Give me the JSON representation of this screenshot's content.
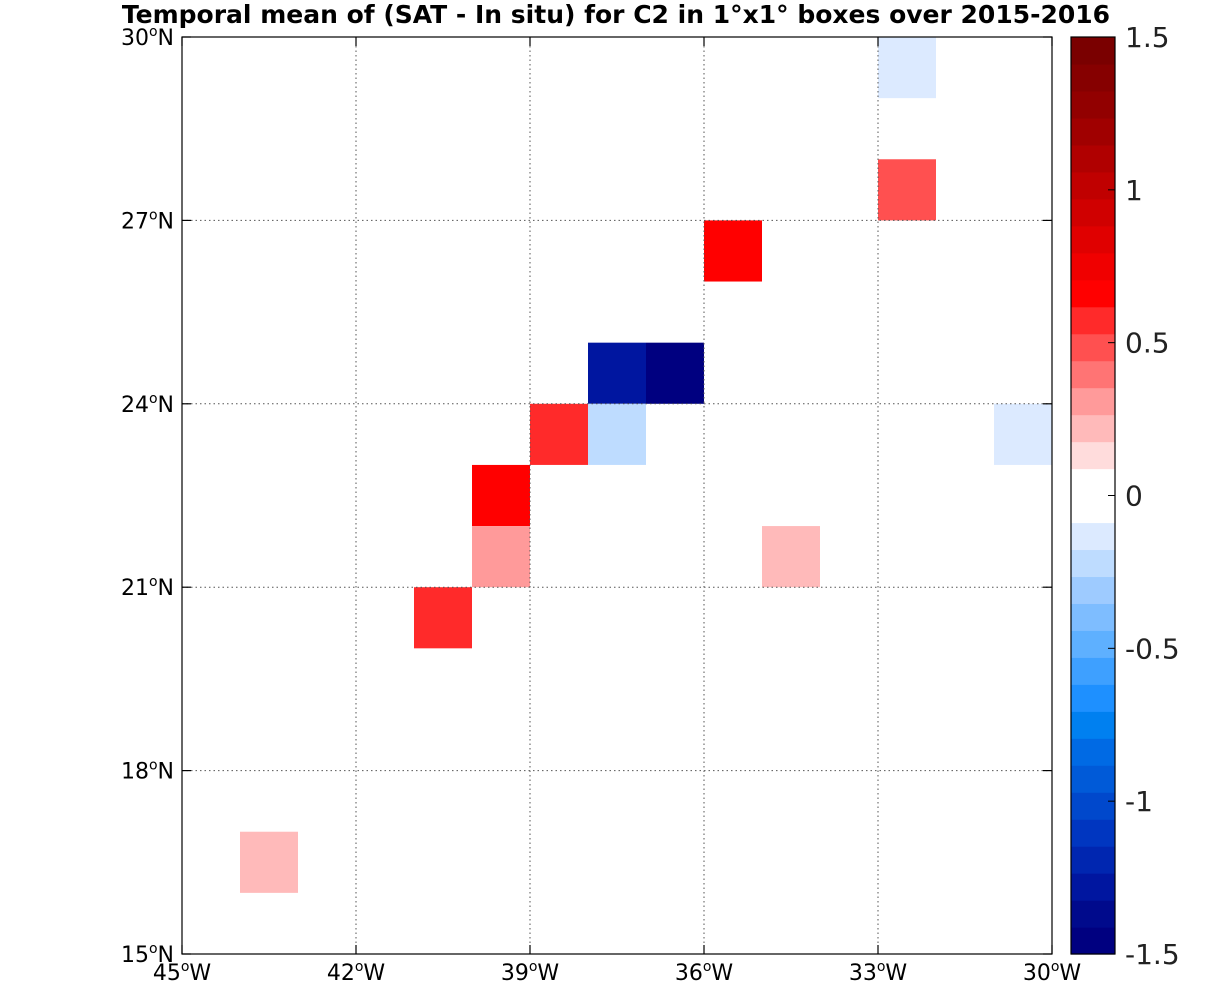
{
  "title": "Temporal mean of (SAT - In situ) for C2 in 1°x1° boxes over 2015-2016",
  "chart_data": {
    "type": "heatmap",
    "x_range": [
      -45,
      -30
    ],
    "y_range": [
      15,
      30
    ],
    "grid": true,
    "x_ticks": [
      {
        "value": -45,
        "num": "45",
        "hemi": "W"
      },
      {
        "value": -42,
        "num": "42",
        "hemi": "W"
      },
      {
        "value": -39,
        "num": "39",
        "hemi": "W"
      },
      {
        "value": -36,
        "num": "36",
        "hemi": "W"
      },
      {
        "value": -33,
        "num": "33",
        "hemi": "W"
      },
      {
        "value": -30,
        "num": "30",
        "hemi": "W"
      }
    ],
    "y_ticks": [
      {
        "value": 15,
        "num": "15",
        "hemi": "N"
      },
      {
        "value": 18,
        "num": "18",
        "hemi": "N"
      },
      {
        "value": 21,
        "num": "21",
        "hemi": "N"
      },
      {
        "value": 24,
        "num": "24",
        "hemi": "N"
      },
      {
        "value": 27,
        "num": "27",
        "hemi": "N"
      },
      {
        "value": 30,
        "num": "30",
        "hemi": "N"
      }
    ],
    "cells": [
      {
        "lon": -33,
        "lat": 29,
        "value": -0.1
      },
      {
        "lon": -33,
        "lat": 27,
        "value": 0.45
      },
      {
        "lon": -36,
        "lat": 26,
        "value": 0.65
      },
      {
        "lon": -38,
        "lat": 24,
        "value": -1.3
      },
      {
        "lon": -37,
        "lat": 24,
        "value": -1.45
      },
      {
        "lon": -39,
        "lat": 23,
        "value": 0.55
      },
      {
        "lon": -38,
        "lat": 23,
        "value": -0.2
      },
      {
        "lon": -31,
        "lat": 23,
        "value": -0.1
      },
      {
        "lon": -40,
        "lat": 22,
        "value": 0.7
      },
      {
        "lon": -40,
        "lat": 21,
        "value": 0.35
      },
      {
        "lon": -35,
        "lat": 21,
        "value": 0.25
      },
      {
        "lon": -41,
        "lat": 20,
        "value": 0.55
      },
      {
        "lon": -44,
        "lat": 16,
        "value": 0.25
      }
    ],
    "colorbar": {
      "range": [
        -1.5,
        1.5
      ],
      "labels": [
        "1.5",
        "1",
        "0.5",
        "0",
        "-0.5",
        "-1",
        "-1.5"
      ],
      "label_values": [
        1.5,
        1,
        0.5,
        0,
        -0.5,
        -1,
        -1.5
      ],
      "colors": [
        "#000080",
        "#000a8c",
        "#0016a0",
        "#0026b0",
        "#0036c0",
        "#0048cc",
        "#005ad8",
        "#006ae4",
        "#0080f0",
        "#1e90ff",
        "#3ea0ff",
        "#5eb0ff",
        "#7ebdff",
        "#9ecbff",
        "#bedcff",
        "#dceaff",
        "#ffffff",
        "#ffffff",
        "#ffdcdc",
        "#ffbaba",
        "#ff9a9a",
        "#ff7474",
        "#ff5050",
        "#ff2a2a",
        "#ff0000",
        "#f00000",
        "#e00000",
        "#d00000",
        "#c00000",
        "#b00000",
        "#a00000",
        "#920000",
        "#860000",
        "#7a0000"
      ]
    }
  }
}
